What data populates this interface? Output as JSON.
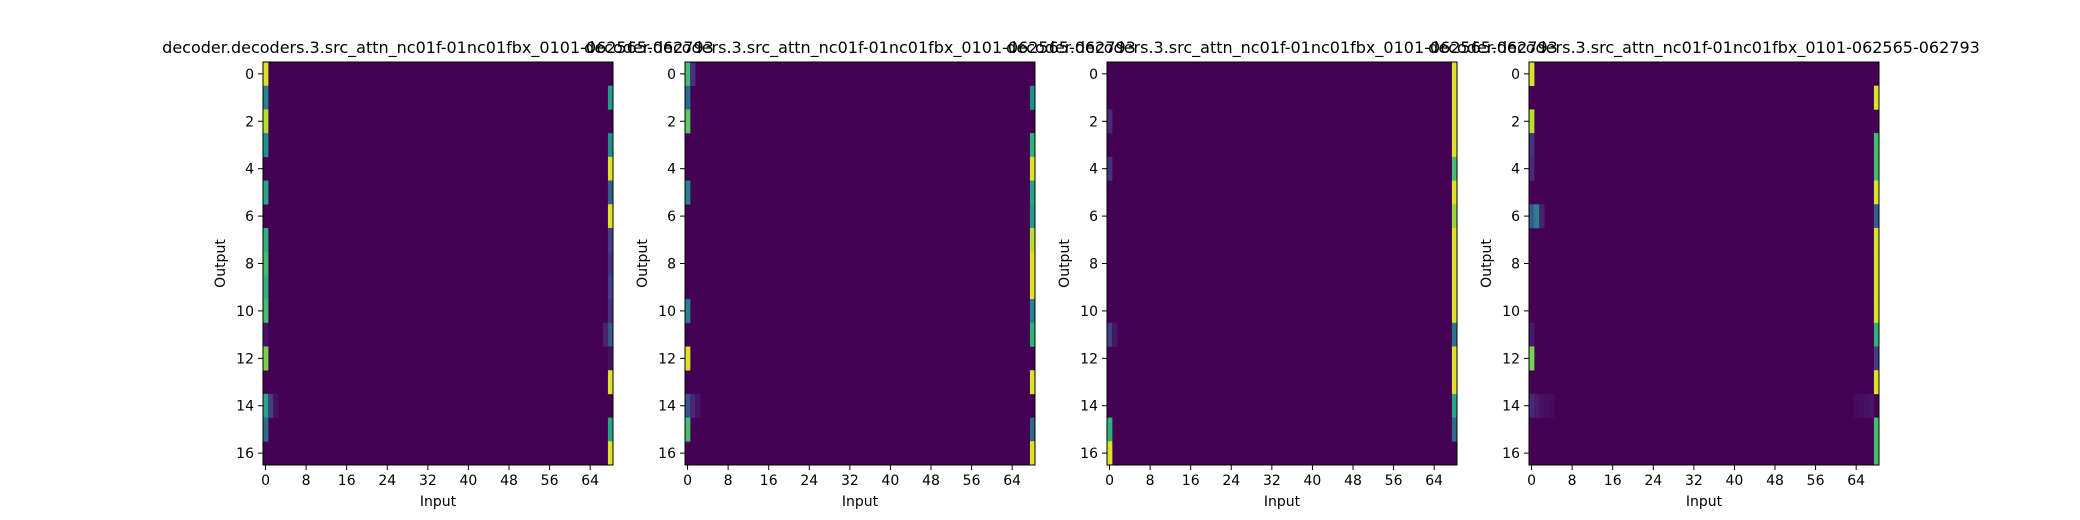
{
  "figure": {
    "background": "#ffffff"
  },
  "colors": {
    "colormap": "viridis",
    "viridis_low": "#440154",
    "viridis_mid": "#21918c",
    "viridis_high": "#fde725",
    "axis": "#000000"
  },
  "chart_data": [
    {
      "type": "heatmap",
      "title": "decoder.decoders.3.src_attn_nc01f-01nc01fbx_0101-062565-062793",
      "xlabel": "Input",
      "ylabel": "Output",
      "x_ticks": [
        0,
        8,
        16,
        24,
        32,
        40,
        48,
        56,
        64
      ],
      "y_ticks": [
        0,
        2,
        4,
        6,
        8,
        10,
        12,
        14,
        16
      ],
      "xlim": [
        -0.5,
        68.5
      ],
      "ylim": [
        16.5,
        -0.5
      ],
      "n_cols": 69,
      "n_rows": 17,
      "colormap": "viridis",
      "background_value": 0.0,
      "cells": [
        {
          "row": 0,
          "col": 0,
          "value": 0.95
        },
        {
          "row": 1,
          "col": 0,
          "value": 0.45
        },
        {
          "row": 1,
          "col": 68,
          "value": 0.55
        },
        {
          "row": 2,
          "col": 0,
          "value": 0.9
        },
        {
          "row": 3,
          "col": 0,
          "value": 0.5
        },
        {
          "row": 3,
          "col": 68,
          "value": 0.5
        },
        {
          "row": 4,
          "col": 68,
          "value": 0.95
        },
        {
          "row": 5,
          "col": 0,
          "value": 0.6
        },
        {
          "row": 5,
          "col": 68,
          "value": 0.3
        },
        {
          "row": 6,
          "col": 68,
          "value": 0.95
        },
        {
          "row": 7,
          "col": 0,
          "value": 0.65
        },
        {
          "row": 7,
          "col": 68,
          "value": 0.2
        },
        {
          "row": 8,
          "col": 0,
          "value": 0.7
        },
        {
          "row": 8,
          "col": 68,
          "value": 0.15
        },
        {
          "row": 9,
          "col": 0,
          "value": 0.65
        },
        {
          "row": 9,
          "col": 68,
          "value": 0.2
        },
        {
          "row": 10,
          "col": 0,
          "value": 0.7
        },
        {
          "row": 10,
          "col": 68,
          "value": 0.15
        },
        {
          "row": 11,
          "col": 0,
          "value": 0.05
        },
        {
          "row": 11,
          "col": 68,
          "value": 0.3
        },
        {
          "row": 11,
          "col": 67,
          "value": 0.1
        },
        {
          "row": 12,
          "col": 0,
          "value": 0.8
        },
        {
          "row": 12,
          "col": 68,
          "value": 0.05
        },
        {
          "row": 13,
          "col": 68,
          "value": 0.95
        },
        {
          "row": 14,
          "col": 0,
          "value": 0.6
        },
        {
          "row": 14,
          "col": 1,
          "value": 0.2
        },
        {
          "row": 14,
          "col": 2,
          "value": 0.05
        },
        {
          "row": 15,
          "col": 0,
          "value": 0.35
        },
        {
          "row": 15,
          "col": 68,
          "value": 0.6
        },
        {
          "row": 16,
          "col": 68,
          "value": 0.95
        }
      ]
    },
    {
      "type": "heatmap",
      "title": "decoder.decoders.3.src_attn_nc01f-01nc01fbx_0101-062565-062793",
      "xlabel": "Input",
      "ylabel": "Output",
      "x_ticks": [
        0,
        8,
        16,
        24,
        32,
        40,
        48,
        56,
        64
      ],
      "y_ticks": [
        0,
        2,
        4,
        6,
        8,
        10,
        12,
        14,
        16
      ],
      "xlim": [
        -0.5,
        68.5
      ],
      "ylim": [
        16.5,
        -0.5
      ],
      "n_cols": 69,
      "n_rows": 17,
      "colormap": "viridis",
      "background_value": 0.0,
      "cells": [
        {
          "row": 0,
          "col": 0,
          "value": 0.7
        },
        {
          "row": 0,
          "col": 1,
          "value": 0.15
        },
        {
          "row": 1,
          "col": 0,
          "value": 0.35
        },
        {
          "row": 1,
          "col": 68,
          "value": 0.5
        },
        {
          "row": 2,
          "col": 0,
          "value": 0.75
        },
        {
          "row": 3,
          "col": 68,
          "value": 0.65
        },
        {
          "row": 4,
          "col": 68,
          "value": 0.95
        },
        {
          "row": 5,
          "col": 0,
          "value": 0.45
        },
        {
          "row": 5,
          "col": 68,
          "value": 0.6
        },
        {
          "row": 6,
          "col": 68,
          "value": 0.55
        },
        {
          "row": 7,
          "col": 68,
          "value": 0.9
        },
        {
          "row": 8,
          "col": 68,
          "value": 0.95
        },
        {
          "row": 9,
          "col": 68,
          "value": 0.95
        },
        {
          "row": 10,
          "col": 0,
          "value": 0.45
        },
        {
          "row": 10,
          "col": 68,
          "value": 0.45
        },
        {
          "row": 11,
          "col": 68,
          "value": 0.65
        },
        {
          "row": 12,
          "col": 0,
          "value": 0.95
        },
        {
          "row": 13,
          "col": 68,
          "value": 0.95
        },
        {
          "row": 14,
          "col": 0,
          "value": 0.25
        },
        {
          "row": 14,
          "col": 1,
          "value": 0.12
        },
        {
          "row": 14,
          "col": 2,
          "value": 0.05
        },
        {
          "row": 15,
          "col": 0,
          "value": 0.7
        },
        {
          "row": 15,
          "col": 68,
          "value": 0.35
        },
        {
          "row": 16,
          "col": 68,
          "value": 0.95
        }
      ]
    },
    {
      "type": "heatmap",
      "title": "decoder.decoders.3.src_attn_nc01f-01nc01fbx_0101-062565-062793",
      "xlabel": "Input",
      "ylabel": "Output",
      "x_ticks": [
        0,
        8,
        16,
        24,
        32,
        40,
        48,
        56,
        64
      ],
      "y_ticks": [
        0,
        2,
        4,
        6,
        8,
        10,
        12,
        14,
        16
      ],
      "xlim": [
        -0.5,
        68.5
      ],
      "ylim": [
        16.5,
        -0.5
      ],
      "n_cols": 69,
      "n_rows": 17,
      "colormap": "viridis",
      "background_value": 0.0,
      "cells": [
        {
          "row": 0,
          "col": 68,
          "value": 0.95
        },
        {
          "row": 1,
          "col": 68,
          "value": 0.95
        },
        {
          "row": 2,
          "col": 0,
          "value": 0.12
        },
        {
          "row": 2,
          "col": 68,
          "value": 0.95
        },
        {
          "row": 3,
          "col": 68,
          "value": 0.95
        },
        {
          "row": 4,
          "col": 0,
          "value": 0.15
        },
        {
          "row": 4,
          "col": 68,
          "value": 0.7
        },
        {
          "row": 5,
          "col": 68,
          "value": 0.95
        },
        {
          "row": 6,
          "col": 68,
          "value": 0.85
        },
        {
          "row": 7,
          "col": 68,
          "value": 0.95
        },
        {
          "row": 8,
          "col": 68,
          "value": 0.95
        },
        {
          "row": 9,
          "col": 68,
          "value": 0.95
        },
        {
          "row": 10,
          "col": 68,
          "value": 0.95
        },
        {
          "row": 11,
          "col": 0,
          "value": 0.2
        },
        {
          "row": 11,
          "col": 1,
          "value": 0.06
        },
        {
          "row": 11,
          "col": 68,
          "value": 0.4
        },
        {
          "row": 12,
          "col": 68,
          "value": 0.95
        },
        {
          "row": 13,
          "col": 68,
          "value": 0.95
        },
        {
          "row": 14,
          "col": 68,
          "value": 0.6
        },
        {
          "row": 15,
          "col": 0,
          "value": 0.65
        },
        {
          "row": 15,
          "col": 68,
          "value": 0.35
        },
        {
          "row": 16,
          "col": 0,
          "value": 0.95
        }
      ]
    },
    {
      "type": "heatmap",
      "title": "decoder.decoders.3.src_attn_nc01f-01nc01fbx_0101-062565-062793",
      "xlabel": "Input",
      "ylabel": "Output",
      "x_ticks": [
        0,
        8,
        16,
        24,
        32,
        40,
        48,
        56,
        64
      ],
      "y_ticks": [
        0,
        2,
        4,
        6,
        8,
        10,
        12,
        14,
        16
      ],
      "xlim": [
        -0.5,
        68.5
      ],
      "ylim": [
        16.5,
        -0.5
      ],
      "n_cols": 69,
      "n_rows": 17,
      "colormap": "viridis",
      "background_value": 0.0,
      "cells": [
        {
          "row": 0,
          "col": 0,
          "value": 0.95
        },
        {
          "row": 1,
          "col": 68,
          "value": 0.95
        },
        {
          "row": 2,
          "col": 0,
          "value": 0.9
        },
        {
          "row": 3,
          "col": 0,
          "value": 0.15
        },
        {
          "row": 3,
          "col": 68,
          "value": 0.7
        },
        {
          "row": 4,
          "col": 0,
          "value": 0.12
        },
        {
          "row": 4,
          "col": 68,
          "value": 0.7
        },
        {
          "row": 5,
          "col": 68,
          "value": 0.95
        },
        {
          "row": 6,
          "col": 0,
          "value": 0.3
        },
        {
          "row": 6,
          "col": 1,
          "value": 0.45
        },
        {
          "row": 6,
          "col": 2,
          "value": 0.1
        },
        {
          "row": 6,
          "col": 68,
          "value": 0.3
        },
        {
          "row": 7,
          "col": 68,
          "value": 0.95
        },
        {
          "row": 8,
          "col": 68,
          "value": 0.95
        },
        {
          "row": 9,
          "col": 68,
          "value": 0.95
        },
        {
          "row": 10,
          "col": 68,
          "value": 0.95
        },
        {
          "row": 11,
          "col": 0,
          "value": 0.08
        },
        {
          "row": 11,
          "col": 68,
          "value": 0.65
        },
        {
          "row": 12,
          "col": 0,
          "value": 0.8
        },
        {
          "row": 12,
          "col": 68,
          "value": 0.2
        },
        {
          "row": 13,
          "col": 68,
          "value": 0.95
        },
        {
          "row": 14,
          "col": 0,
          "value": 0.12
        },
        {
          "row": 14,
          "col": 1,
          "value": 0.08
        },
        {
          "row": 14,
          "col": 2,
          "value": 0.05
        },
        {
          "row": 14,
          "col": 3,
          "value": 0.04
        },
        {
          "row": 14,
          "col": 4,
          "value": 0.03
        },
        {
          "row": 14,
          "col": 64,
          "value": 0.03
        },
        {
          "row": 14,
          "col": 65,
          "value": 0.04
        },
        {
          "row": 14,
          "col": 66,
          "value": 0.05
        },
        {
          "row": 14,
          "col": 67,
          "value": 0.06
        },
        {
          "row": 15,
          "col": 68,
          "value": 0.7
        },
        {
          "row": 16,
          "col": 68,
          "value": 0.7
        }
      ]
    }
  ]
}
